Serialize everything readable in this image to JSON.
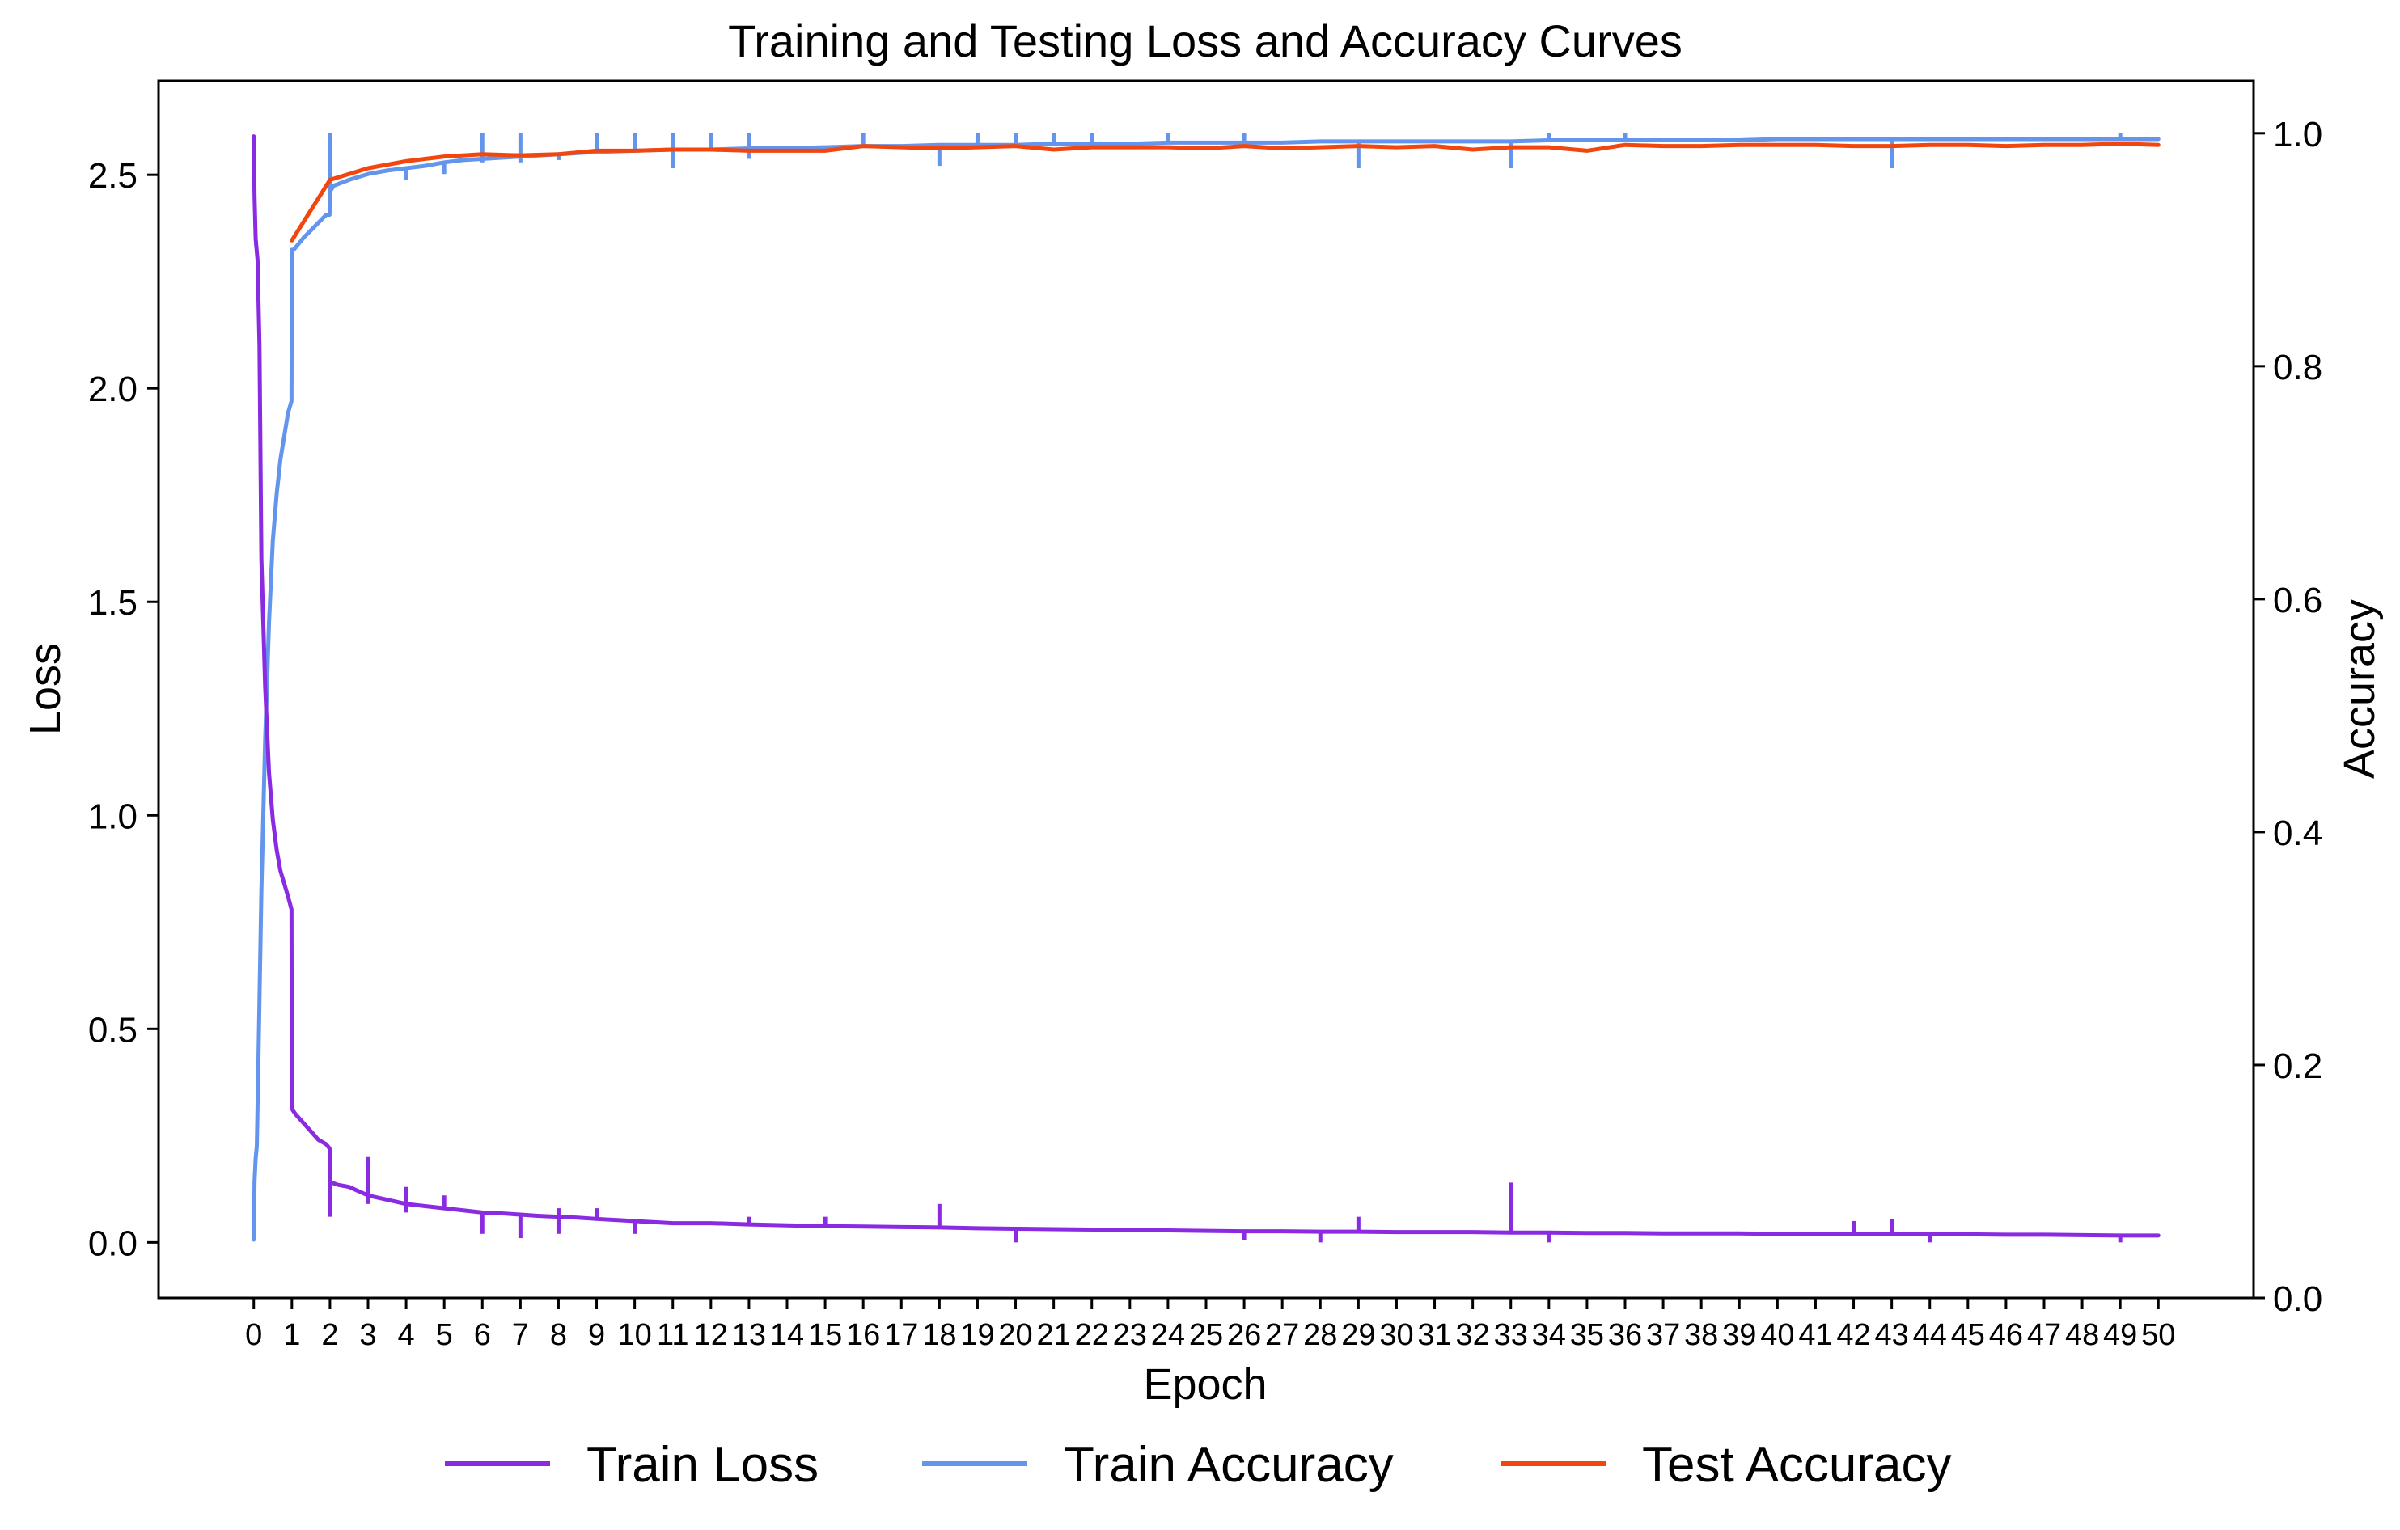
{
  "chart_data": {
    "type": "line",
    "title": "Training and Testing Loss and Accuracy Curves",
    "xlabel": "Epoch",
    "ylabel_left": "Loss",
    "ylabel_right": "Accuracy",
    "xlim": [
      -2.5,
      52.5
    ],
    "ylim_left": [
      -0.13,
      2.72
    ],
    "ylim_right": [
      0.0,
      1.045
    ],
    "x_ticks": [
      0,
      1,
      2,
      3,
      4,
      5,
      6,
      7,
      8,
      9,
      10,
      11,
      12,
      13,
      14,
      15,
      16,
      17,
      18,
      19,
      20,
      21,
      22,
      23,
      24,
      25,
      26,
      27,
      28,
      29,
      30,
      31,
      32,
      33,
      34,
      35,
      36,
      37,
      38,
      39,
      40,
      41,
      42,
      43,
      44,
      45,
      46,
      47,
      48,
      49,
      50
    ],
    "y_ticks_left": [
      0.0,
      0.5,
      1.0,
      1.5,
      2.0,
      2.5
    ],
    "y_ticks_left_labels": [
      "0.0",
      "0.5",
      "1.0",
      "1.5",
      "2.0",
      "2.5"
    ],
    "y_ticks_right": [
      0.0,
      0.2,
      0.4,
      0.6,
      0.8,
      1.0
    ],
    "y_ticks_right_labels": [
      "0.0",
      "0.2",
      "0.4",
      "0.6",
      "0.8",
      "1.0"
    ],
    "grid": false,
    "legend_position": "bottom-center",
    "colors": {
      "train_loss": "#8a2be2",
      "train_accuracy": "#6495ed",
      "test_accuracy": "#f2460e"
    },
    "series": [
      {
        "name": "Train Loss",
        "axis": "left",
        "color": "#8a2be2",
        "x": [
          0,
          0.02,
          0.05,
          0.1,
          0.15,
          0.2,
          0.3,
          0.4,
          0.5,
          0.6,
          0.7,
          0.8,
          0.9,
          0.99,
          1.0,
          1.02,
          1.1,
          1.3,
          1.5,
          1.7,
          1.9,
          1.99,
          2.0,
          2.05,
          2.2,
          2.5,
          3.0,
          3.5,
          4.0,
          4.5,
          5.0,
          5.5,
          6.0,
          6.5,
          7.0,
          7.5,
          8.0,
          8.5,
          9.0,
          10,
          11,
          12,
          13,
          14,
          15,
          16,
          17,
          18,
          19,
          20,
          21,
          22,
          23,
          24,
          25,
          26,
          27,
          28,
          29,
          30,
          31,
          32,
          33,
          34,
          35,
          36,
          37,
          38,
          39,
          40,
          41,
          42,
          43,
          44,
          45,
          46,
          47,
          48,
          49,
          50
        ],
        "y": [
          2.59,
          2.45,
          2.35,
          2.3,
          2.1,
          1.6,
          1.3,
          1.1,
          0.99,
          0.92,
          0.87,
          0.84,
          0.81,
          0.78,
          0.32,
          0.31,
          0.3,
          0.28,
          0.26,
          0.24,
          0.23,
          0.22,
          0.14,
          0.14,
          0.135,
          0.13,
          0.11,
          0.1,
          0.09,
          0.085,
          0.08,
          0.075,
          0.07,
          0.068,
          0.065,
          0.062,
          0.06,
          0.058,
          0.055,
          0.05,
          0.045,
          0.045,
          0.042,
          0.04,
          0.038,
          0.037,
          0.036,
          0.035,
          0.033,
          0.032,
          0.031,
          0.03,
          0.029,
          0.028,
          0.027,
          0.026,
          0.026,
          0.025,
          0.025,
          0.024,
          0.024,
          0.024,
          0.023,
          0.023,
          0.022,
          0.022,
          0.021,
          0.021,
          0.021,
          0.02,
          0.02,
          0.02,
          0.019,
          0.019,
          0.019,
          0.018,
          0.018,
          0.017,
          0.016,
          0.016
        ],
        "spikes": [
          [
            3,
            0.2
          ],
          [
            4,
            0.13
          ],
          [
            5,
            0.11
          ],
          [
            8,
            0.08
          ],
          [
            9,
            0.08
          ],
          [
            13,
            0.06
          ],
          [
            15,
            0.06
          ],
          [
            18,
            0.09
          ],
          [
            29,
            0.06
          ],
          [
            33,
            0.14
          ],
          [
            42,
            0.05
          ],
          [
            43,
            0.055
          ]
        ],
        "dips": [
          [
            2,
            0.06
          ],
          [
            3,
            0.09
          ],
          [
            4,
            0.07
          ],
          [
            6,
            0.02
          ],
          [
            7,
            0.01
          ],
          [
            8,
            0.02
          ],
          [
            10,
            0.02
          ],
          [
            20,
            0.0
          ],
          [
            26,
            0.005
          ],
          [
            28,
            0.0
          ],
          [
            34,
            0.0
          ],
          [
            44,
            0.0
          ],
          [
            49,
            0.0
          ]
        ]
      },
      {
        "name": "Train Accuracy",
        "axis": "right",
        "color": "#6495ed",
        "x": [
          0,
          0.02,
          0.05,
          0.08,
          0.12,
          0.2,
          0.3,
          0.4,
          0.5,
          0.6,
          0.7,
          0.8,
          0.9,
          0.99,
          1.0,
          1.05,
          1.3,
          1.6,
          1.9,
          1.99,
          2.0,
          2.1,
          2.5,
          3.0,
          3.5,
          4.0,
          4.5,
          5.0,
          5.5,
          6.0,
          6.5,
          7.0,
          7.5,
          8.0,
          8.5,
          9.0,
          10,
          11,
          12,
          13,
          14,
          15,
          16,
          17,
          18,
          19,
          20,
          21,
          22,
          23,
          24,
          25,
          26,
          27,
          28,
          29,
          30,
          31,
          32,
          33,
          34,
          35,
          36,
          37,
          38,
          39,
          40,
          41,
          42,
          43,
          44,
          45,
          46,
          47,
          48,
          49,
          50
        ],
        "y": [
          0.05,
          0.1,
          0.12,
          0.13,
          0.2,
          0.35,
          0.48,
          0.58,
          0.65,
          0.69,
          0.72,
          0.74,
          0.76,
          0.77,
          0.9,
          0.9,
          0.91,
          0.92,
          0.93,
          0.93,
          0.95,
          0.955,
          0.96,
          0.965,
          0.968,
          0.97,
          0.972,
          0.975,
          0.977,
          0.978,
          0.979,
          0.98,
          0.981,
          0.982,
          0.983,
          0.984,
          0.985,
          0.986,
          0.986,
          0.987,
          0.987,
          0.988,
          0.989,
          0.989,
          0.99,
          0.99,
          0.99,
          0.991,
          0.991,
          0.991,
          0.992,
          0.992,
          0.992,
          0.992,
          0.993,
          0.993,
          0.993,
          0.993,
          0.993,
          0.993,
          0.994,
          0.994,
          0.994,
          0.994,
          0.994,
          0.994,
          0.995,
          0.995,
          0.995,
          0.995,
          0.995,
          0.995,
          0.995,
          0.995,
          0.995,
          0.995,
          0.995
        ],
        "spikes": [
          [
            2,
            1.0
          ],
          [
            6,
            1.0
          ],
          [
            7,
            1.0
          ],
          [
            9,
            1.0
          ],
          [
            10,
            1.0
          ],
          [
            11,
            1.0
          ],
          [
            12,
            1.0
          ],
          [
            13,
            1.0
          ],
          [
            16,
            1.0
          ],
          [
            19,
            1.0
          ],
          [
            20,
            1.0
          ],
          [
            21,
            1.0
          ],
          [
            22,
            1.0
          ],
          [
            24,
            1.0
          ],
          [
            26,
            1.0
          ],
          [
            34,
            1.0
          ],
          [
            36,
            1.0
          ],
          [
            49,
            1.0
          ]
        ],
        "dips": [
          [
            4,
            0.96
          ],
          [
            5,
            0.965
          ],
          [
            6,
            0.975
          ],
          [
            7,
            0.975
          ],
          [
            8,
            0.977
          ],
          [
            11,
            0.97
          ],
          [
            13,
            0.978
          ],
          [
            18,
            0.972
          ],
          [
            29,
            0.97
          ],
          [
            33,
            0.97
          ],
          [
            43,
            0.97
          ]
        ]
      },
      {
        "name": "Test Accuracy",
        "axis": "right",
        "color": "#f2460e",
        "x": [
          1,
          2,
          3,
          4,
          5,
          6,
          7,
          8,
          9,
          10,
          11,
          12,
          13,
          14,
          15,
          16,
          17,
          18,
          19,
          20,
          21,
          22,
          23,
          24,
          25,
          26,
          27,
          28,
          29,
          30,
          31,
          32,
          33,
          34,
          35,
          36,
          37,
          38,
          39,
          40,
          41,
          42,
          43,
          44,
          45,
          46,
          47,
          48,
          49,
          50
        ],
        "y": [
          0.908,
          0.96,
          0.97,
          0.976,
          0.98,
          0.982,
          0.981,
          0.982,
          0.985,
          0.985,
          0.986,
          0.986,
          0.985,
          0.985,
          0.985,
          0.989,
          0.988,
          0.987,
          0.988,
          0.989,
          0.986,
          0.988,
          0.988,
          0.988,
          0.987,
          0.989,
          0.987,
          0.988,
          0.989,
          0.988,
          0.989,
          0.986,
          0.988,
          0.988,
          0.985,
          0.99,
          0.989,
          0.989,
          0.99,
          0.99,
          0.99,
          0.989,
          0.989,
          0.99,
          0.99,
          0.989,
          0.99,
          0.99,
          0.991,
          0.99
        ]
      }
    ]
  }
}
